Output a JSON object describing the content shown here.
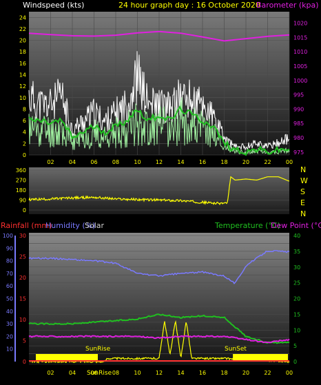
{
  "header": {
    "left_label": "Windspeed (kts)",
    "title": "24 hour graph day : 16 October 2020",
    "right_label": "Barometer (kpa)"
  },
  "colors": {
    "grid_text_y": "#ffff00",
    "baro": "#e020e0",
    "wind_avg": "#20c020",
    "wind_gust": "#ffffff",
    "wind_light": "#a0f0a0",
    "direction": "#ffff00",
    "rain": "#ff3030",
    "humidity": "#7a7aff",
    "temp": "#20c020",
    "dew": "#e020e0",
    "solar": "#ffff00",
    "sunbar": "#ffff00",
    "compass": "#ffff00"
  },
  "chart_data": [
    {
      "type": "line",
      "panel": "wind",
      "title": "24 hour graph day : 16 October 2020",
      "ylabel": "Windspeed (kts)",
      "y2label": "Barometer (kpa)",
      "x_ticks": [
        "02",
        "04",
        "06",
        "08",
        "10",
        "12",
        "14",
        "16",
        "18",
        "20",
        "22",
        "00"
      ],
      "y_ticks": [
        0,
        2,
        4,
        6,
        8,
        10,
        12,
        14,
        16,
        18,
        20,
        22,
        24
      ],
      "ylim": [
        0,
        25
      ],
      "y2_ticks": [
        975,
        980,
        985,
        990,
        995,
        1000,
        1005,
        1010,
        1015,
        1020
      ],
      "y2lim": [
        974,
        1024
      ],
      "series": [
        {
          "name": "Barometer",
          "axis": "y2",
          "x": [
            0,
            2,
            4,
            6,
            8,
            10,
            12,
            14,
            16,
            18,
            20,
            22,
            24
          ],
          "values": [
            1016.5,
            1016.0,
            1015.6,
            1015.5,
            1015.8,
            1016.6,
            1017.1,
            1016.5,
            1015.2,
            1013.8,
            1014.6,
            1015.4,
            1015.9
          ]
        },
        {
          "name": "Wind average",
          "axis": "y",
          "x": [
            0,
            1,
            2,
            3,
            4,
            5,
            6,
            7,
            8,
            9,
            10,
            11,
            12,
            13,
            14,
            15,
            16,
            17,
            18,
            19,
            20,
            21,
            22,
            23,
            24
          ],
          "values": [
            6,
            6,
            5.5,
            6,
            3,
            4,
            5,
            4,
            5,
            6,
            8,
            6,
            7,
            6,
            8,
            7,
            6,
            5,
            2,
            1,
            0.5,
            1,
            0.5,
            0.8,
            1
          ]
        },
        {
          "name": "Wind gust",
          "axis": "y",
          "x": [
            0,
            1,
            2,
            3,
            4,
            5,
            6,
            7,
            8,
            9,
            10,
            11,
            12,
            13,
            14,
            15,
            16,
            17,
            18,
            19,
            20,
            21,
            22,
            23,
            24
          ],
          "values": [
            14,
            12,
            12,
            14,
            6,
            8,
            10,
            8,
            10,
            12,
            19,
            12,
            12,
            11,
            14,
            13,
            12,
            9,
            4,
            2,
            2,
            3,
            2,
            3,
            4
          ]
        }
      ]
    },
    {
      "type": "line",
      "panel": "direction",
      "y_ticks": [
        0,
        90,
        180,
        270,
        360
      ],
      "ylim": [
        0,
        360
      ],
      "compass_labels": [
        "N",
        "W",
        "S",
        "E",
        "N"
      ],
      "series": [
        {
          "name": "Wind direction",
          "x": [
            0,
            2,
            4,
            6,
            8,
            10,
            12,
            14,
            16,
            17.5,
            18.3,
            18.6,
            19,
            20,
            21,
            22,
            23,
            24
          ],
          "values": [
            95,
            100,
            110,
            115,
            100,
            95,
            90,
            85,
            70,
            60,
            65,
            300,
            270,
            280,
            270,
            300,
            300,
            260
          ]
        }
      ]
    },
    {
      "type": "line",
      "panel": "climate",
      "left_labels": [
        "Rainfall (mm)",
        "Humidity (%)",
        "Solar"
      ],
      "right_labels": [
        "Temperature (°C)",
        "Dew Point (°C)"
      ],
      "x_ticks": [
        "02",
        "04",
        "06",
        "08",
        "10",
        "12",
        "14",
        "16",
        "18",
        "20",
        "22",
        "00"
      ],
      "humidity_ticks": [
        10,
        20,
        30,
        40,
        50,
        60,
        70,
        80,
        90,
        100
      ],
      "rain_ticks": [
        0,
        5,
        10,
        15,
        20,
        25,
        30
      ],
      "temp_ticks": [
        0,
        5,
        10,
        15,
        20,
        25,
        30,
        35,
        40
      ],
      "ylim_humidity": [
        0,
        100
      ],
      "ylim_temp": [
        0,
        40
      ],
      "annotations": [
        "SunRise",
        "SunSet",
        "SunRise"
      ],
      "series": [
        {
          "name": "Humidity",
          "axis": "humidity",
          "x": [
            0,
            2,
            4,
            6,
            8,
            10,
            12,
            14,
            16,
            18,
            19,
            20,
            22,
            24
          ],
          "values": [
            82,
            82,
            81,
            80,
            78,
            70,
            68,
            70,
            71,
            68,
            62,
            76,
            88,
            87
          ]
        },
        {
          "name": "Temperature",
          "axis": "temp",
          "x": [
            0,
            2,
            4,
            6,
            8,
            10,
            12,
            14,
            16,
            18,
            20,
            22,
            24
          ],
          "values": [
            12,
            12,
            12,
            12.5,
            13,
            13.5,
            15,
            14,
            14.5,
            14,
            8,
            6,
            6
          ]
        },
        {
          "name": "Dew Point",
          "axis": "temp",
          "x": [
            0,
            2,
            4,
            6,
            8,
            10,
            12,
            14,
            16,
            18,
            20,
            22,
            24
          ],
          "values": [
            8,
            8,
            8,
            8,
            8,
            8,
            7.5,
            8,
            8,
            8,
            7,
            6,
            7
          ]
        },
        {
          "name": "Solar",
          "axis": "temp",
          "x": [
            0,
            7,
            7.2,
            12,
            12.5,
            13,
            13.5,
            14,
            14.5,
            15,
            16,
            18,
            24
          ],
          "values": [
            0,
            0,
            1,
            1,
            13,
            2,
            13,
            1,
            13,
            1,
            1,
            1,
            0
          ]
        }
      ]
    }
  ]
}
